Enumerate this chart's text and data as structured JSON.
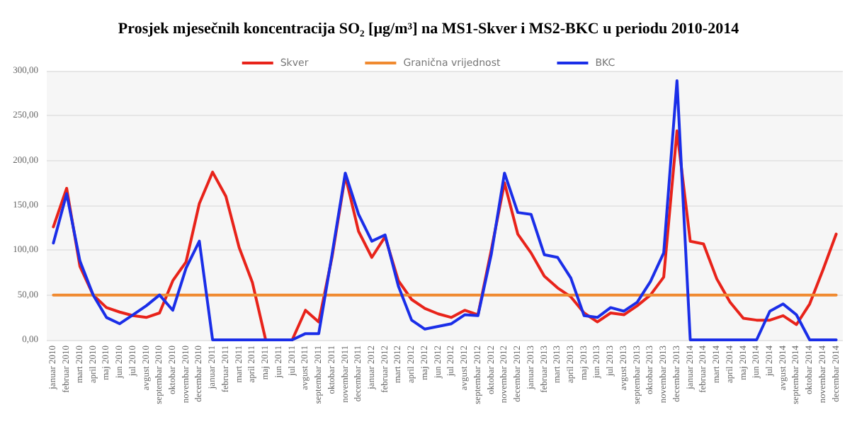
{
  "chart_data": {
    "type": "line",
    "title": "Prosjek mjesečnih koncentracija SO₂ [µg/m³] na MS1-Skver i MS2-BKC u periodu 2010-2014",
    "categories": [
      "januar 2010",
      "februar 2010",
      "mart 2010",
      "april 2010",
      "maj 2010",
      "jun 2010",
      "jul 2010",
      "avgust 2010",
      "septembar 2010",
      "oktobar 2010",
      "novembar 2010",
      "decembar 2010",
      "januar 2011",
      "februar 2011",
      "mart 2011",
      "april 2011",
      "maj 2011",
      "jun 2011",
      "jul 2011",
      "avgust 2011",
      "septembar 2011",
      "oktobar 2011",
      "novembar 2011",
      "decembar 2011",
      "januar 2012",
      "februar 2012",
      "mart 2012",
      "april 2012",
      "maj 2012",
      "jun 2012",
      "jul 2012",
      "avgust 2012",
      "septembar 2012",
      "oktobar 2012",
      "novembar 2012",
      "decembar 2012",
      "januar 2013",
      "februar 2013",
      "mart 2013",
      "april 2013",
      "maj 2013",
      "jun 2013",
      "jul 2013",
      "avgust 2013",
      "septembar 2013",
      "oktobar 2013",
      "novembar 2013",
      "decembar 2013",
      "januar 2014",
      "februar 2014",
      "mart 2014",
      "april 2014",
      "maj 2014",
      "jun 2014",
      "jul 2014",
      "avgust 2014",
      "septembar 2014",
      "oktobar 2014",
      "novembar 2014",
      "decembar 2014"
    ],
    "series": [
      {
        "name": "Skver",
        "color": "#e8231a",
        "values": [
          126,
          169,
          82,
          50,
          36,
          31,
          27,
          25,
          30,
          66,
          87,
          152,
          187,
          160,
          103,
          64,
          0,
          0,
          0,
          33,
          20,
          92,
          183,
          121,
          92,
          115,
          66,
          45,
          35,
          29,
          25,
          33,
          28,
          100,
          175,
          118,
          97,
          71,
          58,
          48,
          30,
          20,
          30,
          28,
          38,
          50,
          70,
          233,
          110,
          107,
          68,
          42,
          24,
          22,
          22,
          27,
          17,
          40,
          78,
          118
        ]
      },
      {
        "name": "Granična vrijednost",
        "color": "#f08a30",
        "values": [
          50,
          50,
          50,
          50,
          50,
          50,
          50,
          50,
          50,
          50,
          50,
          50,
          50,
          50,
          50,
          50,
          50,
          50,
          50,
          50,
          50,
          50,
          50,
          50,
          50,
          50,
          50,
          50,
          50,
          50,
          50,
          50,
          50,
          50,
          50,
          50,
          50,
          50,
          50,
          50,
          50,
          50,
          50,
          50,
          50,
          50,
          50,
          50,
          50,
          50,
          50,
          50,
          50,
          50,
          50,
          50,
          50,
          50,
          50,
          50
        ]
      },
      {
        "name": "BKC",
        "color": "#1a2ee8",
        "values": [
          108,
          163,
          88,
          50,
          25,
          18,
          28,
          38,
          50,
          33,
          80,
          110,
          0,
          0,
          0,
          0,
          0,
          0,
          0,
          7,
          7,
          95,
          186,
          140,
          110,
          117,
          60,
          22,
          12,
          15,
          18,
          28,
          27,
          95,
          186,
          142,
          140,
          95,
          92,
          69,
          27,
          25,
          36,
          32,
          42,
          65,
          97,
          289,
          0,
          0,
          0,
          0,
          0,
          0,
          32,
          40,
          28,
          0,
          0,
          0
        ]
      }
    ],
    "ylim": [
      0,
      300
    ],
    "yticks": [
      {
        "value": 0,
        "label": "0,00"
      },
      {
        "value": 50,
        "label": "50,00"
      },
      {
        "value": 100,
        "label": "100,00"
      },
      {
        "value": 150,
        "label": "150,00"
      },
      {
        "value": 200,
        "label": "200,00"
      },
      {
        "value": 250,
        "label": "250,00"
      },
      {
        "value": 300,
        "label": "300,00"
      }
    ],
    "grid": "y",
    "legend": "top",
    "marker": "none",
    "line_style": "solid"
  }
}
